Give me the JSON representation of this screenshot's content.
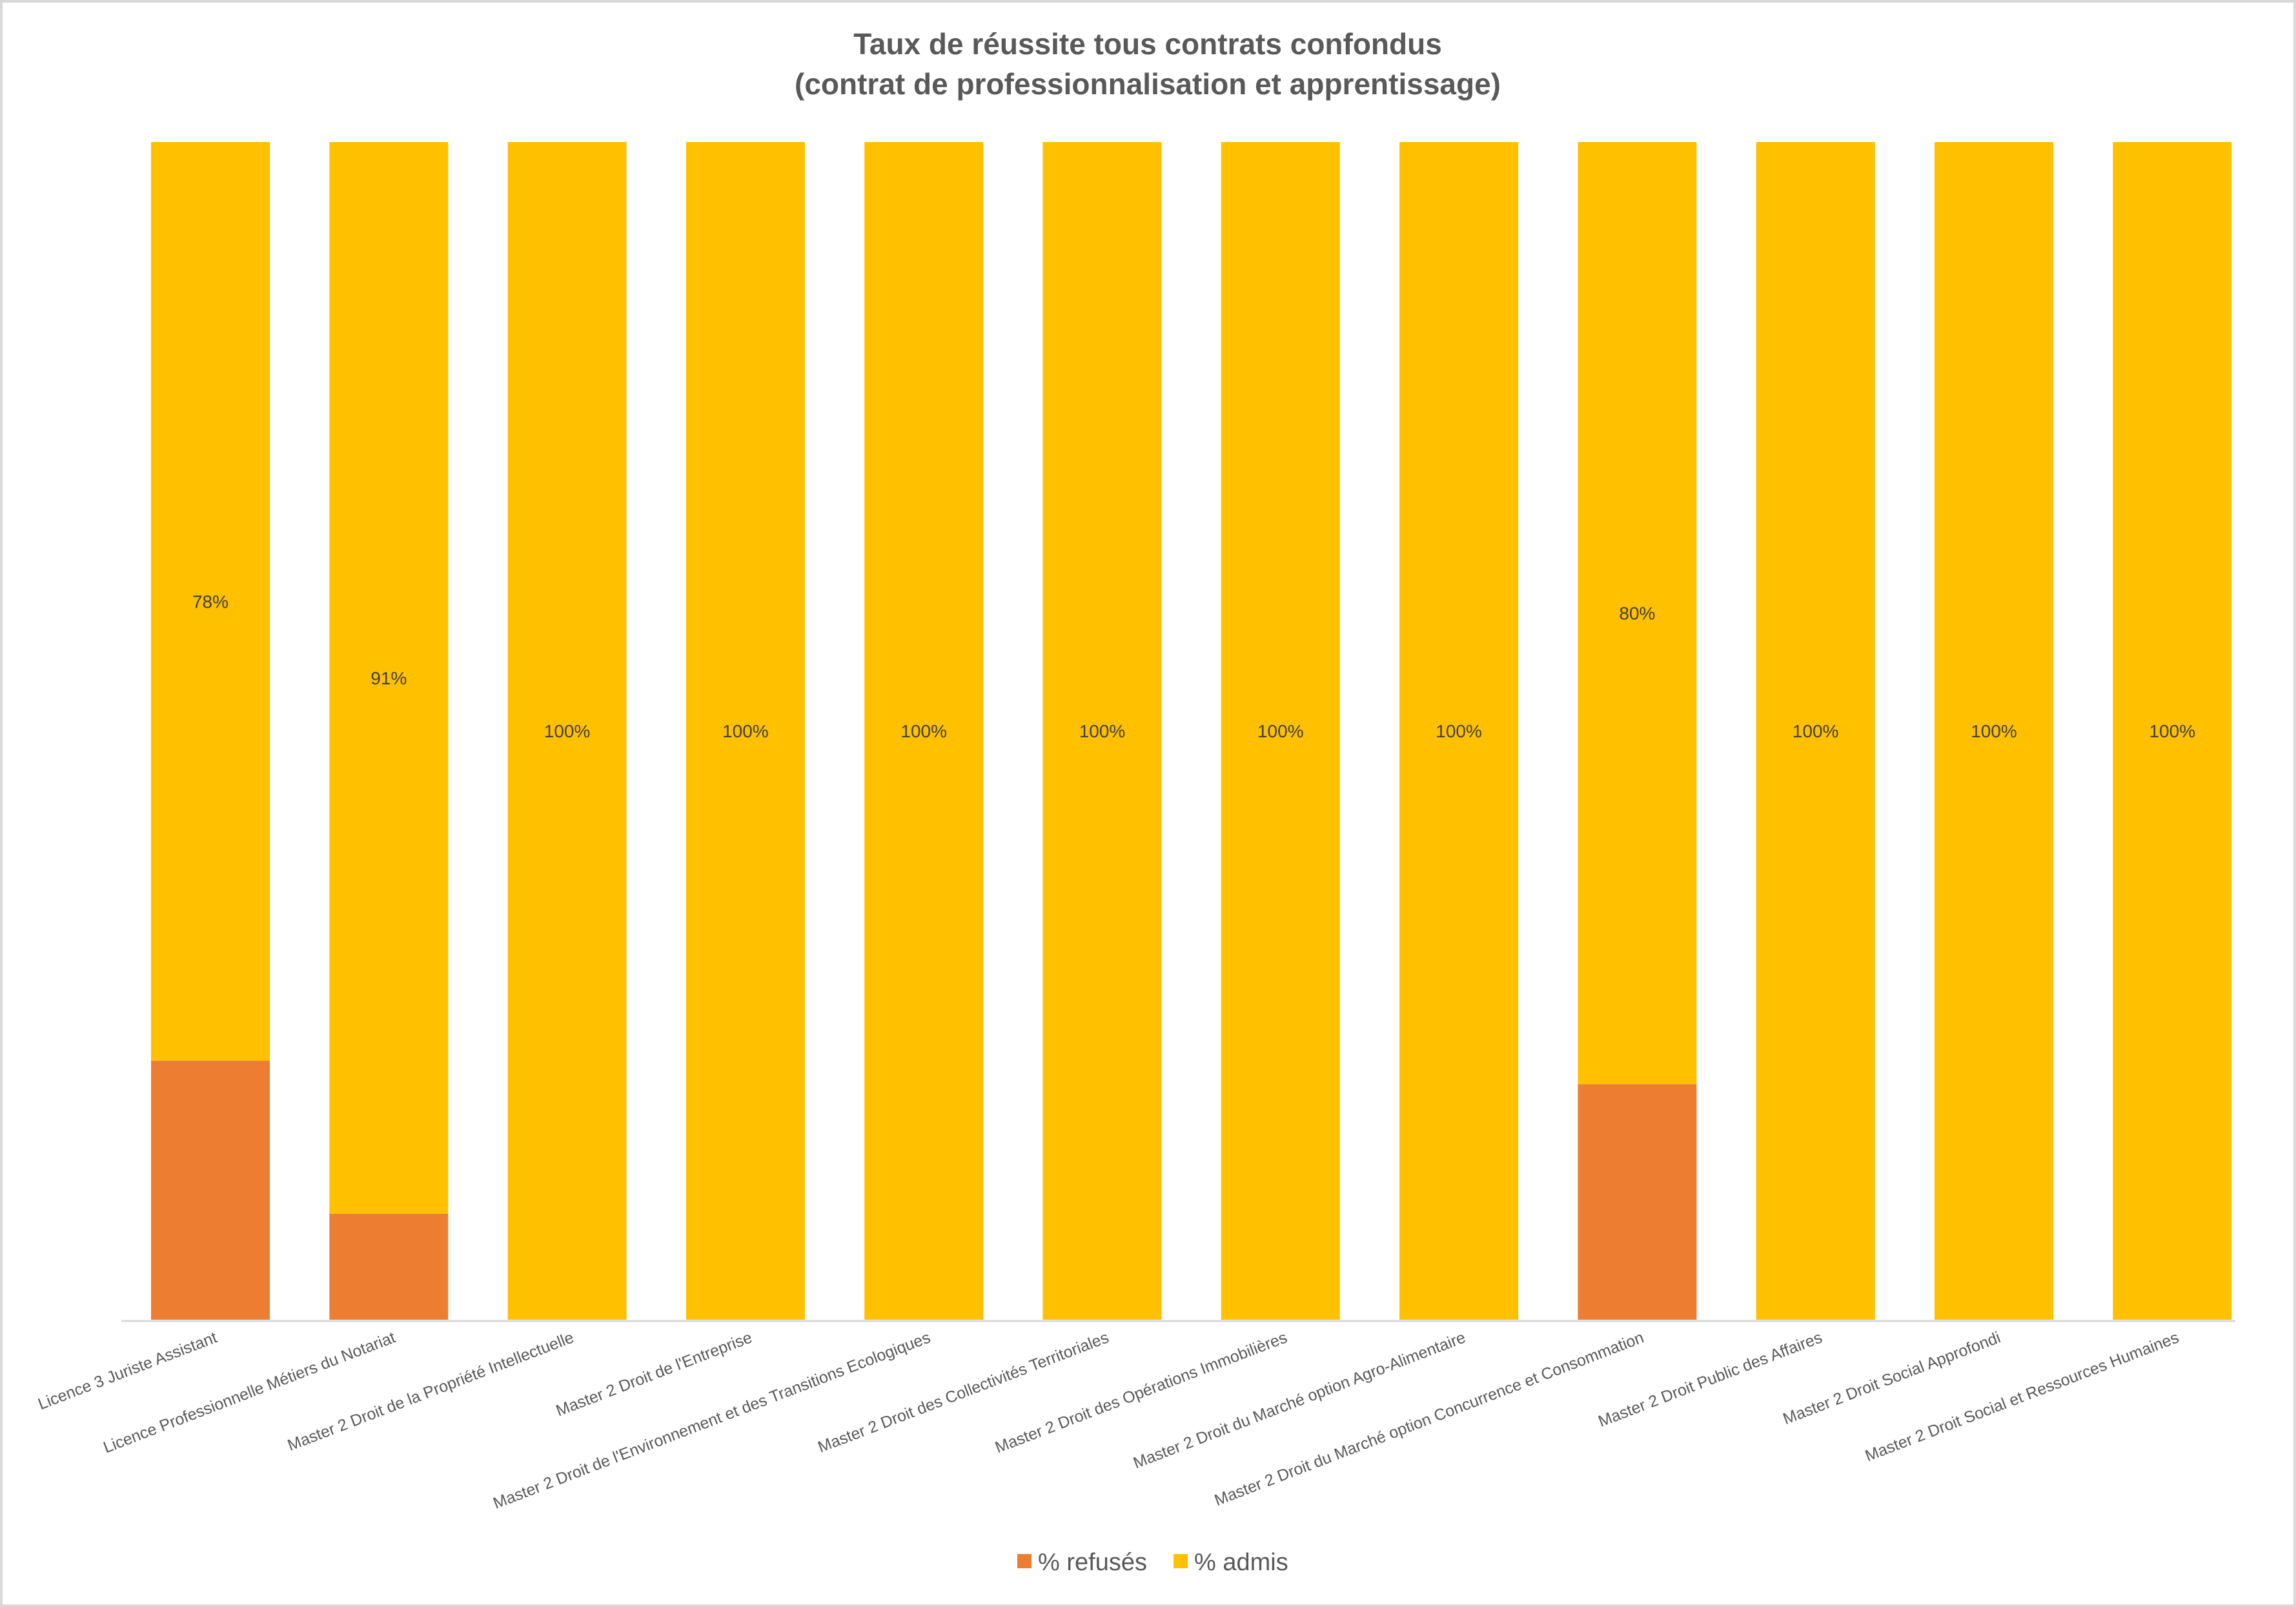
{
  "chart_data": {
    "type": "bar",
    "stacked": true,
    "percent_stacked": true,
    "title": "Taux de réussite tous contrats confondus",
    "subtitle": "(contrat de professionnalisation et apprentissage)",
    "xlabel": "",
    "ylabel": "",
    "ylim": [
      0,
      100
    ],
    "grid": false,
    "y_axis_visible": false,
    "legend_position": "bottom",
    "categories": [
      "Licence 3 Juriste Assistant",
      "Licence Professionnelle Métiers du Notariat",
      "Master 2 Droit de la Propriété Intellectuelle",
      "Master 2 Droit de l'Entreprise",
      "Master 2 Droit de l'Environnement et des Transitions Ecologiques",
      "Master 2 Droit des Collectivités Territoriales",
      "Master 2 Droit des Opérations Immobilières",
      "Master 2 Droit du Marché option Agro-Alimentaire",
      "Master 2 Droit du Marché option Concurrence et Consommation",
      "Master 2 Droit Public des Affaires",
      "Master 2 Droit Social Approfondi",
      "Master 2 Droit Social et Ressources Humaines"
    ],
    "series": [
      {
        "name": "% refusés",
        "color": "#ED7D31",
        "values": [
          22,
          9,
          0,
          0,
          0,
          0,
          0,
          0,
          20,
          0,
          0,
          0
        ],
        "data_labels": false
      },
      {
        "name": "% admis",
        "color": "#FFC000",
        "values": [
          78,
          91,
          100,
          100,
          100,
          100,
          100,
          100,
          80,
          100,
          100,
          100
        ],
        "data_labels": true,
        "labels": [
          "78%",
          "91%",
          "100%",
          "100%",
          "100%",
          "100%",
          "100%",
          "100%",
          "80%",
          "100%",
          "100%",
          "100%"
        ]
      }
    ]
  }
}
